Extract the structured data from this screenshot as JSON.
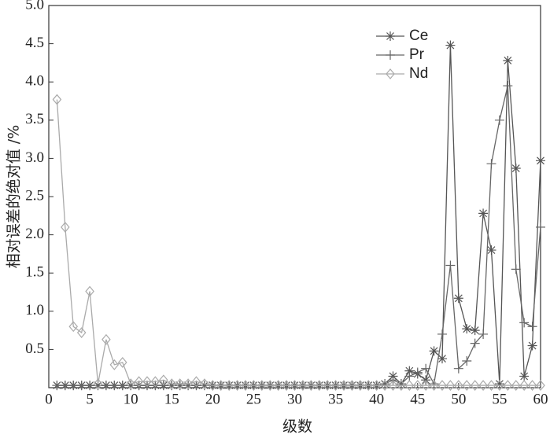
{
  "chart_data": {
    "type": "line",
    "x_label": "级数",
    "y_label": "相对误差的绝对值 /%",
    "x": [
      1,
      2,
      3,
      4,
      5,
      6,
      7,
      8,
      9,
      10,
      11,
      12,
      13,
      14,
      15,
      16,
      17,
      18,
      19,
      20,
      21,
      22,
      23,
      24,
      25,
      26,
      27,
      28,
      29,
      30,
      31,
      32,
      33,
      34,
      35,
      36,
      37,
      38,
      39,
      40,
      41,
      42,
      43,
      44,
      45,
      46,
      47,
      48,
      49,
      50,
      51,
      52,
      53,
      54,
      55,
      56,
      57,
      58,
      59,
      60
    ],
    "series": [
      {
        "name": "Ce",
        "color": "#555555",
        "marker": "star",
        "values": [
          0.03,
          0.03,
          0.03,
          0.03,
          0.03,
          0.03,
          0.03,
          0.03,
          0.03,
          0.03,
          0.03,
          0.03,
          0.03,
          0.03,
          0.03,
          0.03,
          0.03,
          0.03,
          0.03,
          0.03,
          0.03,
          0.03,
          0.03,
          0.03,
          0.03,
          0.03,
          0.03,
          0.03,
          0.03,
          0.03,
          0.03,
          0.03,
          0.03,
          0.03,
          0.03,
          0.03,
          0.03,
          0.03,
          0.03,
          0.03,
          0.05,
          0.15,
          0.05,
          0.22,
          0.18,
          0.1,
          0.48,
          0.38,
          4.48,
          1.17,
          0.77,
          0.75,
          2.28,
          1.8,
          0.05,
          4.28,
          2.87,
          0.15,
          0.55,
          2.97
        ]
      },
      {
        "name": "Pr",
        "color": "#666666",
        "marker": "plus",
        "values": [
          0.03,
          0.03,
          0.03,
          0.03,
          0.03,
          0.03,
          0.03,
          0.03,
          0.03,
          0.03,
          0.03,
          0.03,
          0.03,
          0.03,
          0.03,
          0.03,
          0.03,
          0.03,
          0.03,
          0.03,
          0.03,
          0.03,
          0.03,
          0.03,
          0.03,
          0.03,
          0.03,
          0.03,
          0.03,
          0.03,
          0.03,
          0.03,
          0.03,
          0.03,
          0.03,
          0.03,
          0.03,
          0.03,
          0.03,
          0.03,
          0.05,
          0.1,
          0.05,
          0.15,
          0.2,
          0.25,
          0.05,
          0.7,
          1.6,
          0.25,
          0.35,
          0.58,
          0.7,
          2.93,
          3.5,
          3.95,
          1.55,
          0.85,
          0.8,
          2.1
        ]
      },
      {
        "name": "Nd",
        "color": "#aaaaaa",
        "marker": "diamond",
        "values": [
          3.77,
          2.1,
          0.8,
          0.72,
          1.26,
          0.05,
          0.63,
          0.3,
          0.33,
          0.05,
          0.08,
          0.08,
          0.08,
          0.1,
          0.05,
          0.05,
          0.05,
          0.08,
          0.05,
          0.03,
          0.03,
          0.03,
          0.03,
          0.03,
          0.03,
          0.03,
          0.03,
          0.03,
          0.03,
          0.03,
          0.03,
          0.03,
          0.03,
          0.03,
          0.03,
          0.03,
          0.03,
          0.03,
          0.03,
          0.03,
          0.03,
          0.03,
          0.03,
          0.03,
          0.03,
          0.03,
          0.03,
          0.03,
          0.03,
          0.03,
          0.03,
          0.03,
          0.03,
          0.03,
          0.03,
          0.03,
          0.03,
          0.03,
          0.03,
          0.03
        ]
      }
    ],
    "xlim": [
      0,
      60
    ],
    "ylim": [
      0,
      5
    ],
    "xticks": [
      0,
      5,
      10,
      15,
      20,
      25,
      30,
      35,
      40,
      45,
      50,
      55,
      60
    ],
    "yticks": [
      {
        "value": 0.5,
        "label": "0.5"
      },
      {
        "value": 1,
        "label": "1.0"
      },
      {
        "value": 1.5,
        "label": "1.5"
      },
      {
        "value": 2,
        "label": "2.0"
      },
      {
        "value": 2.5,
        "label": "2.5"
      },
      {
        "value": 3,
        "label": "3.0"
      },
      {
        "value": 3.5,
        "label": "3.5"
      },
      {
        "value": 4,
        "label": "4.0"
      },
      {
        "value": 4.5,
        "label": "4.5"
      },
      {
        "value": 5,
        "label": "5.0"
      }
    ],
    "legend": "upper right",
    "grid": false
  }
}
